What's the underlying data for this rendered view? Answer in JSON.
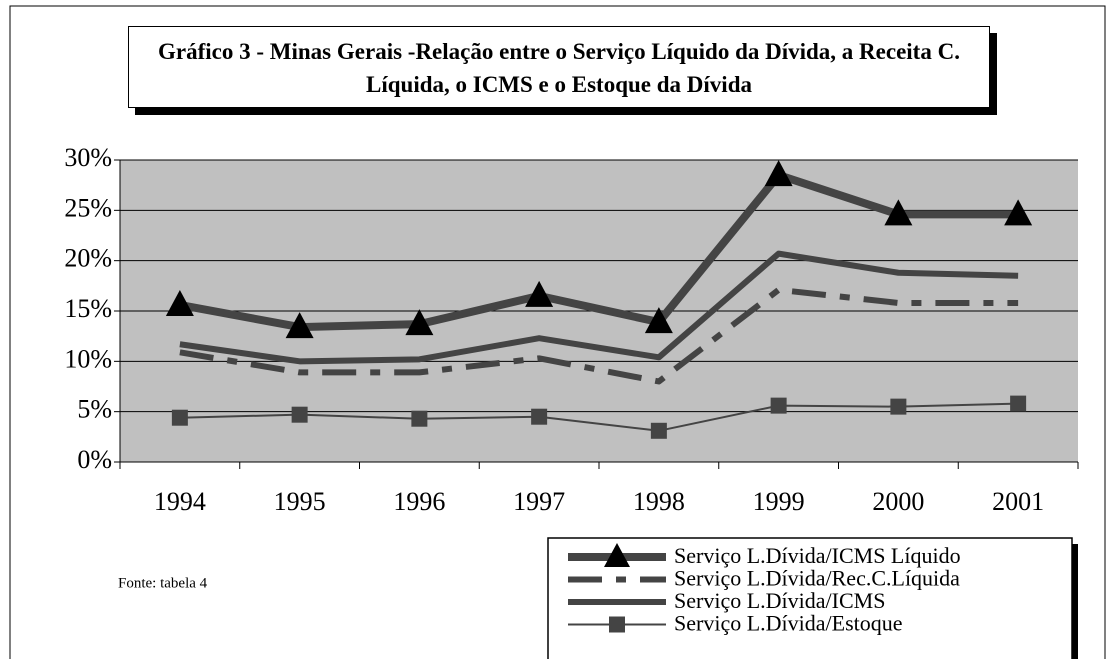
{
  "chart_data": {
    "type": "line",
    "title": "Gráfico 3 - Minas Gerais -Relação entre o Serviço Líquido da Dívida, a Receita C. Líquida, o ICMS e o Estoque da Dívida",
    "source": "Fonte: tabela 4",
    "categories": [
      "1994",
      "1995",
      "1996",
      "1997",
      "1998",
      "1999",
      "2000",
      "2001"
    ],
    "series": [
      {
        "name": "Serviço L.Dívida/ICMS Líquido",
        "color": "#444444",
        "marker": "triangle",
        "line_style": "solid",
        "values": [
          15.6,
          13.4,
          13.7,
          16.5,
          13.9,
          28.5,
          24.6,
          24.6
        ]
      },
      {
        "name": "Serviço L.Dívida/Rec.C.Líquida",
        "color": "#444444",
        "marker": "none",
        "line_style": "dash-dot",
        "values": [
          10.9,
          8.9,
          8.9,
          10.3,
          8.0,
          17.1,
          15.8,
          15.8
        ]
      },
      {
        "name": "Serviço L.Dívida/ICMS",
        "color": "#444444",
        "marker": "none",
        "line_style": "solid",
        "values": [
          11.7,
          10.0,
          10.2,
          12.3,
          10.4,
          20.7,
          18.8,
          18.5
        ]
      },
      {
        "name": "Serviço L.Dívida/Estoque",
        "color": "#444444",
        "marker": "square",
        "line_style": "thin",
        "values": [
          4.4,
          4.7,
          4.3,
          4.5,
          3.1,
          5.6,
          5.5,
          5.8
        ]
      }
    ],
    "ylim": [
      0,
      30
    ],
    "yticks": [
      {
        "value": 0,
        "label": "0%"
      },
      {
        "value": 5,
        "label": "5%"
      },
      {
        "value": 10,
        "label": "10%"
      },
      {
        "value": 15,
        "label": "15%"
      },
      {
        "value": 20,
        "label": "20%"
      },
      {
        "value": 25,
        "label": "25%"
      },
      {
        "value": 30,
        "label": "30%"
      }
    ],
    "grid": true,
    "plot_background": "#c0c0c0",
    "legend": "bottom-right"
  }
}
